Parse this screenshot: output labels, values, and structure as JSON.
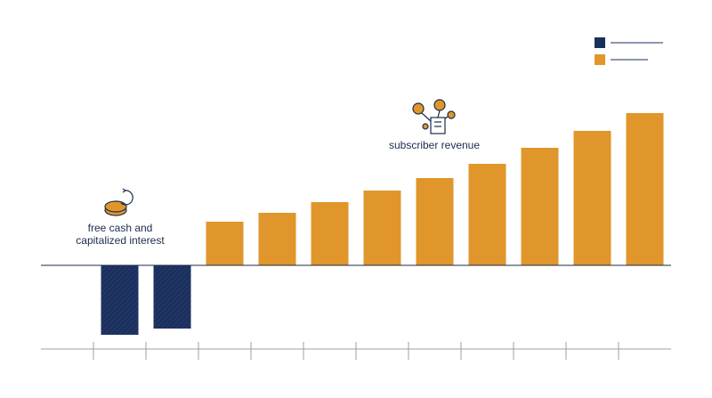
{
  "chart_data": {
    "type": "bar",
    "categories": [
      null,
      null,
      null,
      null,
      null,
      null,
      null,
      null,
      null,
      null,
      null,
      null
    ],
    "series": [
      {
        "color": "#1b2f5c",
        "values": [
          null,
          -78,
          -71,
          null,
          null,
          null,
          null,
          null,
          null,
          null,
          null,
          null
        ]
      },
      {
        "color": "#e0962a",
        "values": [
          null,
          null,
          null,
          49,
          59,
          71,
          84,
          98,
          114,
          132,
          151,
          171
        ]
      }
    ],
    "ylim": [
      -94,
      200
    ],
    "annotations": [
      "free cash and",
      "capitalized interest",
      "subscriber revenue"
    ]
  }
}
